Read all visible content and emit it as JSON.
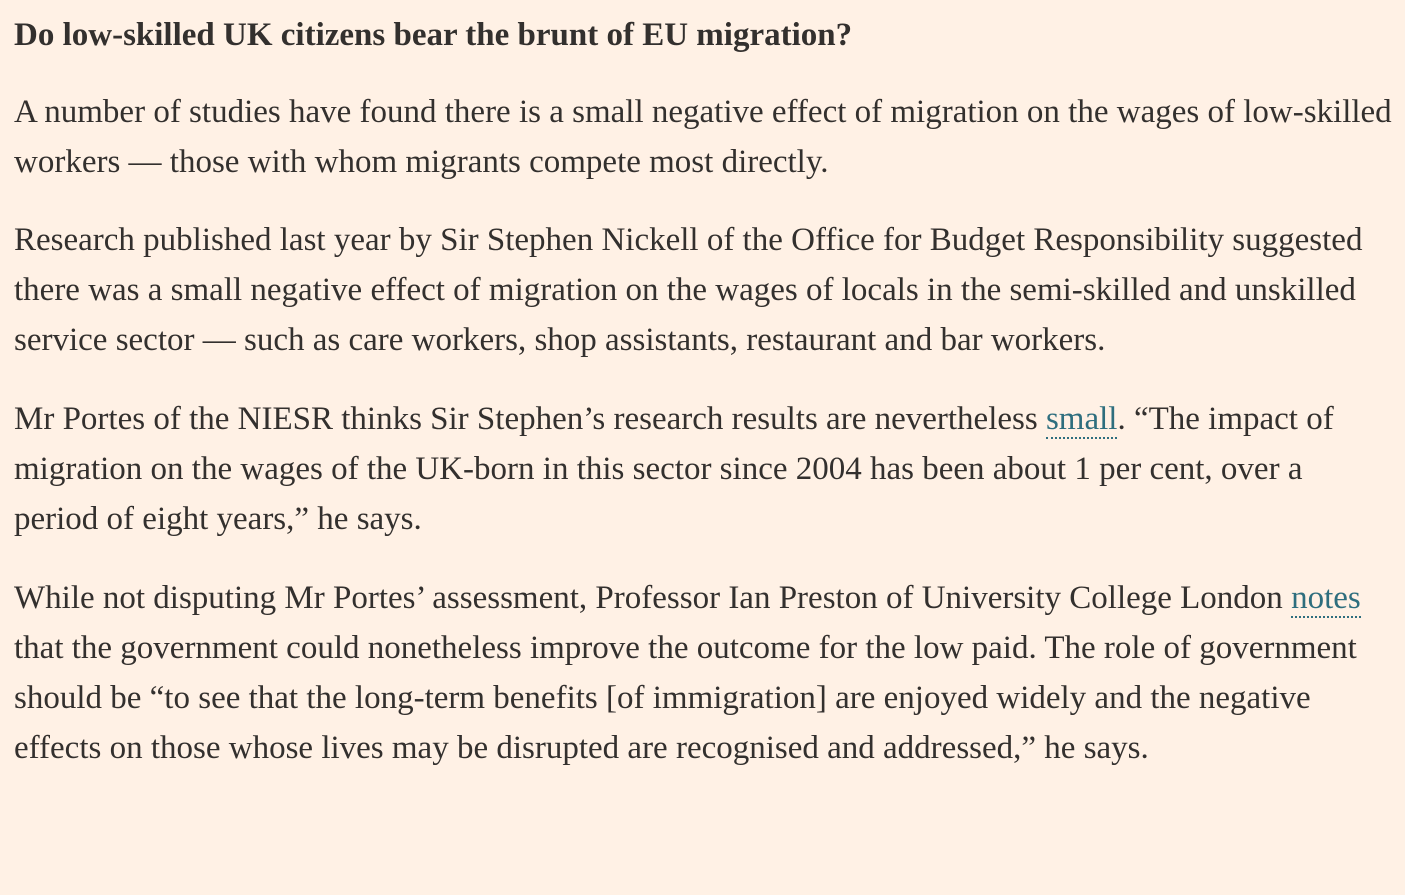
{
  "article": {
    "heading": "Do low-skilled UK citizens bear the brunt of EU migration?",
    "p1": "A number of studies have found there is a small negative effect of migration on the wages of low-skilled workers — those with whom migrants compete most directly.",
    "p2": "Research published last year by Sir Stephen Nickell of the Office for Budget Responsibility suggested there was a small negative effect of migration on the wages of locals in the semi-skilled and unskilled service sector — such as care workers, shop assistants, restaurant and bar workers.",
    "p3": {
      "before": "Mr Portes of the NIESR thinks Sir Stephen’s research results are nevertheless ",
      "link": "small",
      "after": ". “The impact of migration on the wages of the UK-born in this sector since 2004 has been about 1 per cent, over a period of eight years,” he says."
    },
    "p4": {
      "before": "While not disputing Mr Portes’ assessment, Professor Ian Preston of University College London ",
      "link": "notes",
      "after": " that the government could nonetheless improve the outcome for the low paid. The role of government should be “to see that the long-term benefits [of immigration] are enjoyed widely and the negative effects on those whose lives may be disrupted are recognised and addressed,” he says."
    }
  },
  "colors": {
    "background": "#FFF1E5",
    "text": "#33302E",
    "link": "#2E6E7E"
  }
}
